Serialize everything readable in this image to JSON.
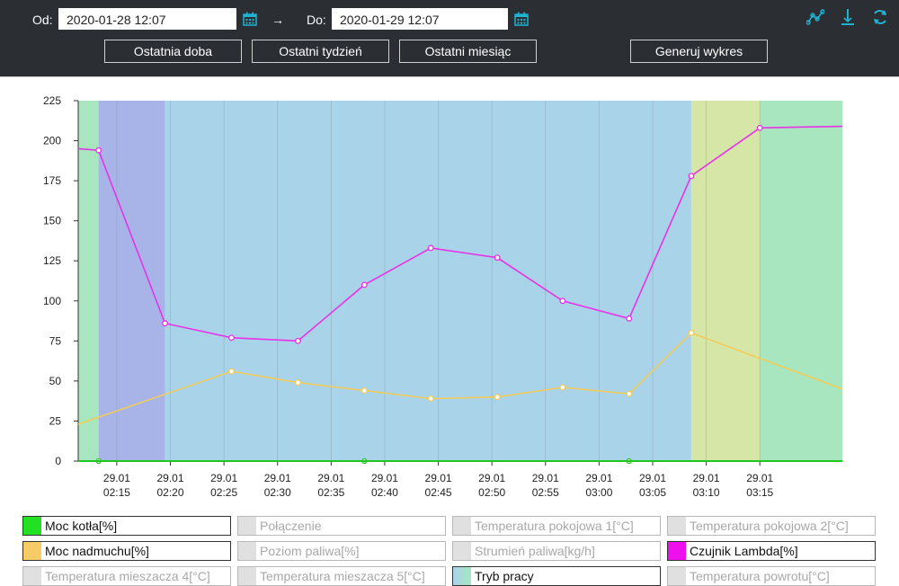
{
  "header": {
    "from_label": "Od:",
    "from_value": "2020-01-28 12:07",
    "arrow": "→",
    "to_label": "Do:",
    "to_value": "2020-01-29 12:07",
    "buttons": {
      "last_day": "Ostatnia doba",
      "last_week": "Ostatni tydzień",
      "last_month": "Ostatni miesiąc",
      "generate": "Generuj wykres"
    },
    "icons": [
      "chart-lines-icon",
      "download-icon",
      "refresh-icon"
    ],
    "icon_color": "#1fb3d1"
  },
  "chart_data": {
    "type": "line",
    "y_ticks": [
      "0",
      "25",
      "50",
      "75",
      "100",
      "125",
      "150",
      "175",
      "200",
      "225"
    ],
    "ylim": [
      0,
      225
    ],
    "x_ticks": [
      {
        "date": "29.01",
        "time": "02:15",
        "minutes": 15
      },
      {
        "date": "29.01",
        "time": "02:20",
        "minutes": 20
      },
      {
        "date": "29.01",
        "time": "02:25",
        "minutes": 25
      },
      {
        "date": "29.01",
        "time": "02:30",
        "minutes": 30
      },
      {
        "date": "29.01",
        "time": "02:35",
        "minutes": 35
      },
      {
        "date": "29.01",
        "time": "02:40",
        "minutes": 40
      },
      {
        "date": "29.01",
        "time": "02:45",
        "minutes": 45
      },
      {
        "date": "29.01",
        "time": "02:50",
        "minutes": 50
      },
      {
        "date": "29.01",
        "time": "02:55",
        "minutes": 55
      },
      {
        "date": "29.01",
        "time": "03:00",
        "minutes": 60
      },
      {
        "date": "29.01",
        "time": "03:05",
        "minutes": 65
      },
      {
        "date": "29.01",
        "time": "03:10",
        "minutes": 70
      },
      {
        "date": "29.01",
        "time": "03:15",
        "minutes": 75
      }
    ],
    "xlim_minutes": [
      11.4,
      82.7
    ],
    "bands": [
      {
        "from": 11.4,
        "to": 13.3,
        "color": "#a8e6bf"
      },
      {
        "from": 13.3,
        "to": 19.5,
        "color": "#a8b4e8"
      },
      {
        "from": 19.5,
        "to": 68.6,
        "color": "#a9d3e9"
      },
      {
        "from": 68.6,
        "to": 75.0,
        "color": "#d5e6a6"
      },
      {
        "from": 75.0,
        "to": 82.7,
        "color": "#a8e6bf"
      }
    ],
    "series": [
      {
        "name": "Czujnik Lambda[%]",
        "color": "#e831e8",
        "points": [
          [
            11.4,
            195
          ],
          [
            13.3,
            194
          ],
          [
            19.5,
            86
          ],
          [
            25.7,
            77
          ],
          [
            31.9,
            75
          ],
          [
            38.1,
            110
          ],
          [
            44.3,
            133
          ],
          [
            50.5,
            127
          ],
          [
            56.6,
            100
          ],
          [
            62.8,
            89
          ],
          [
            68.6,
            178
          ],
          [
            75.0,
            208
          ],
          [
            82.7,
            209
          ]
        ]
      },
      {
        "name": "Moc nadmuchu[%]",
        "color": "#f2cc5a",
        "points": [
          [
            11.4,
            23
          ],
          [
            25.7,
            56
          ],
          [
            31.9,
            49
          ],
          [
            38.1,
            44
          ],
          [
            44.3,
            39
          ],
          [
            50.5,
            40
          ],
          [
            56.6,
            46
          ],
          [
            62.8,
            42
          ],
          [
            68.6,
            80
          ],
          [
            82.7,
            45
          ]
        ],
        "marked": [
          false,
          true,
          true,
          true,
          true,
          true,
          true,
          true,
          true,
          false
        ]
      },
      {
        "name": "Moc kotła[%]",
        "color": "#1ec81e",
        "points": [
          [
            11.4,
            0
          ],
          [
            82.7,
            0
          ]
        ],
        "marker_x": [
          13.3,
          38.1,
          62.8
        ]
      }
    ]
  },
  "legend": [
    {
      "label": "Moc kotła[%]",
      "color": "#22e022",
      "on": true
    },
    {
      "label": "Połączenie",
      "color": "#e0e0e0",
      "on": false
    },
    {
      "label": "Temperatura pokojowa 1[°C]",
      "color": "#e0e0e0",
      "on": false
    },
    {
      "label": "Temperatura pokojowa 2[°C]",
      "color": "#e0e0e0",
      "on": false
    },
    {
      "label": "Moc nadmuchu[%]",
      "color": "#f7cc66",
      "on": true
    },
    {
      "label": "Poziom paliwa[%]",
      "color": "#e0e0e0",
      "on": false
    },
    {
      "label": "Strumień paliwa[kg/h]",
      "color": "#e0e0e0",
      "on": false
    },
    {
      "label": "Czujnik Lambda[%]",
      "color": "#ee11ee",
      "on": true
    },
    {
      "label": "Temperatura mieszacza 4[°C]",
      "color": "#e0e0e0",
      "on": false
    },
    {
      "label": "Temperatura mieszacza 5[°C]",
      "color": "#e0e0e0",
      "on": false
    },
    {
      "label": "Tryb pracy",
      "color": "gradient",
      "on": true
    },
    {
      "label": "Temperatura powrotu[°C]",
      "color": "#e0e0e0",
      "on": false
    }
  ]
}
